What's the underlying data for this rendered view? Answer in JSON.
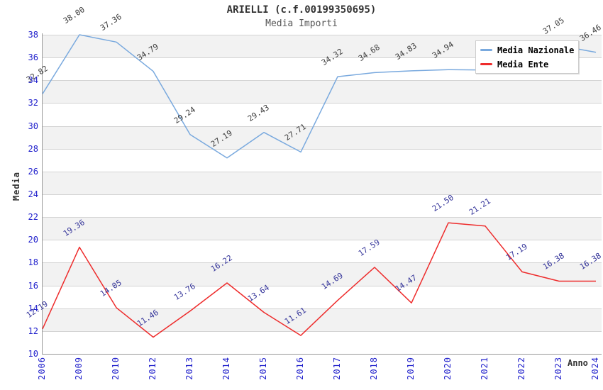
{
  "header": {
    "title": "ARIELLI (c.f.00199350695)",
    "subtitle": "Media Importi"
  },
  "legend": {
    "items": [
      {
        "label": "Media Nazionale",
        "color": "#79a9de"
      },
      {
        "label": "Media Ente",
        "color": "#ee2c2c"
      }
    ]
  },
  "colors": {
    "tick_label": "#2222cc",
    "band_gray": "#f2f2f2",
    "gridline": "#d4d4d4",
    "axis_line": "#999999"
  },
  "chart_data": {
    "type": "line",
    "title": "ARIELLI (c.f.00199350695)",
    "subtitle": "Media Importi",
    "xlabel": "Anno",
    "ylabel": "Media",
    "ylim": [
      10,
      38
    ],
    "ytick_step": 2,
    "yticks": [
      38,
      36,
      34,
      32,
      30,
      28,
      26,
      24,
      22,
      20,
      18,
      16,
      14,
      12,
      10
    ],
    "grid": "horizontal-alternating-bands",
    "legend_position": "top-right-overlay",
    "categories": [
      "2006",
      "2009",
      "2010",
      "2012",
      "2013",
      "2014",
      "2015",
      "2016",
      "2017",
      "2018",
      "2019",
      "2020",
      "2021",
      "2022",
      "2023",
      "2024"
    ],
    "series": [
      {
        "name": "Media Nazionale",
        "color": "#79a9de",
        "label_color": "#3c3c3c",
        "values": [
          32.82,
          38.0,
          37.36,
          34.79,
          29.24,
          27.19,
          29.43,
          27.71,
          34.32,
          34.68,
          34.83,
          34.94,
          34.9,
          35.9,
          37.05,
          36.46
        ],
        "point_labels": [
          "32.82",
          "38.00",
          "37.36",
          "34.79",
          "29.24",
          "27.19",
          "29.43",
          "27.71",
          "34.32",
          "34.68",
          "34.83",
          "34.94",
          "",
          "",
          "37.05",
          "36.46"
        ]
      },
      {
        "name": "Media Ente",
        "color": "#ee2c2c",
        "label_color": "#333399",
        "values": [
          12.19,
          19.36,
          14.05,
          11.46,
          13.76,
          16.22,
          13.64,
          11.61,
          14.69,
          17.59,
          14.47,
          21.5,
          21.21,
          17.19,
          16.38,
          16.38
        ],
        "point_labels": [
          "12.19",
          "19.36",
          "14.05",
          "11.46",
          "13.76",
          "16.22",
          "13.64",
          "11.61",
          "14.69",
          "17.59",
          "14.47",
          "21.50",
          "21.21",
          "17.19",
          "16.38",
          "16.38"
        ]
      }
    ]
  }
}
